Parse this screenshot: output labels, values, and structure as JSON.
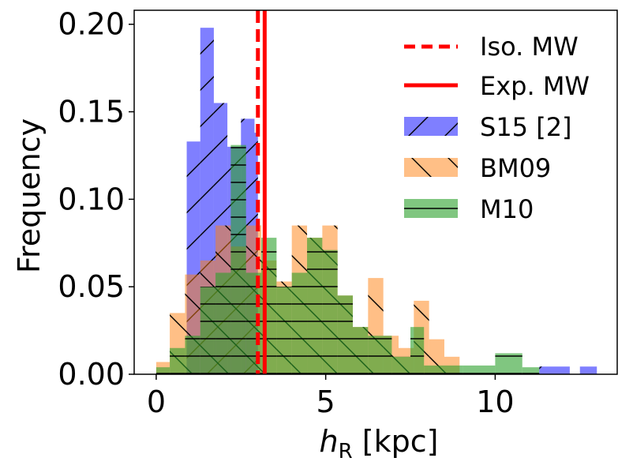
{
  "chart_data": {
    "type": "histogram",
    "title": "",
    "xlabel_italic": "h",
    "xlabel_sub": "R",
    "xlabel_rest": " [kpc]",
    "ylabel": "Frequency",
    "xlim": [
      -0.65,
      13.6
    ],
    "ylim": [
      0,
      0.208
    ],
    "xticks": [
      0,
      5,
      10
    ],
    "xtick_labels": [
      "0",
      "5",
      "10"
    ],
    "yticks": [
      0.0,
      0.05,
      0.1,
      0.15,
      0.2
    ],
    "ytick_labels": [
      "0.00",
      "0.05",
      "0.10",
      "0.15",
      "0.20"
    ],
    "legend_position": "upper right",
    "vlines": [
      {
        "name": "Iso. MW",
        "x": 3.0,
        "color": "#ff0000",
        "style": "dashed"
      },
      {
        "name": "Exp. MW",
        "x": 3.2,
        "color": "#ff0000",
        "style": "solid"
      }
    ],
    "series": [
      {
        "name": "S15 [2]",
        "color": "#0000ff",
        "hatch": "/",
        "bins": [
          [
            0.9,
            1.3,
            0.133
          ],
          [
            1.3,
            1.7,
            0.198
          ],
          [
            1.7,
            2.1,
            0.155
          ],
          [
            2.1,
            2.5,
            0.13
          ],
          [
            2.5,
            2.9,
            0.146
          ],
          [
            2.9,
            3.0,
            0.138
          ],
          [
            11.3,
            12.2,
            0.0044
          ],
          [
            12.5,
            13.0,
            0.0044
          ]
        ]
      },
      {
        "name": "BM09",
        "color": "#ff7f0e",
        "hatch": "\\",
        "bins": [
          [
            0.0,
            0.4,
            0.007
          ],
          [
            0.4,
            0.85,
            0.035
          ],
          [
            0.85,
            1.3,
            0.057
          ],
          [
            1.3,
            1.75,
            0.065
          ],
          [
            1.75,
            2.2,
            0.085
          ],
          [
            2.2,
            2.65,
            0.073
          ],
          [
            2.65,
            3.1,
            0.085
          ],
          [
            3.1,
            3.55,
            0.065
          ],
          [
            3.55,
            4.0,
            0.053
          ],
          [
            4.0,
            4.45,
            0.085
          ],
          [
            4.45,
            4.9,
            0.078
          ],
          [
            4.9,
            5.35,
            0.085
          ],
          [
            5.35,
            5.8,
            0.045
          ],
          [
            5.8,
            6.25,
            0.027
          ],
          [
            6.25,
            6.7,
            0.055
          ],
          [
            6.7,
            7.15,
            0.022
          ],
          [
            7.15,
            7.6,
            0.015
          ],
          [
            7.6,
            8.05,
            0.042
          ],
          [
            8.05,
            8.5,
            0.02
          ],
          [
            8.5,
            8.95,
            0.01
          ]
        ]
      },
      {
        "name": "M10",
        "color": "#2ca02c",
        "hatch": "-",
        "bins": [
          [
            0.0,
            0.4,
            0.004
          ],
          [
            0.4,
            0.85,
            0.015
          ],
          [
            0.85,
            1.3,
            0.022
          ],
          [
            1.3,
            1.75,
            0.05
          ],
          [
            1.75,
            2.2,
            0.058
          ],
          [
            2.2,
            2.65,
            0.131
          ],
          [
            2.65,
            3.1,
            0.058
          ],
          [
            3.1,
            3.55,
            0.078
          ],
          [
            3.55,
            4.0,
            0.05
          ],
          [
            4.0,
            4.45,
            0.058
          ],
          [
            4.45,
            4.9,
            0.078
          ],
          [
            4.9,
            5.35,
            0.071
          ],
          [
            5.35,
            5.8,
            0.045
          ],
          [
            5.8,
            6.25,
            0.027
          ],
          [
            6.25,
            6.95,
            0.022
          ],
          [
            6.95,
            7.5,
            0.01
          ],
          [
            7.5,
            7.9,
            0.027
          ],
          [
            7.9,
            9.05,
            0.005
          ],
          [
            9.05,
            10.0,
            0.005
          ],
          [
            10.0,
            10.8,
            0.012
          ],
          [
            10.8,
            11.3,
            0.004
          ]
        ]
      }
    ]
  }
}
